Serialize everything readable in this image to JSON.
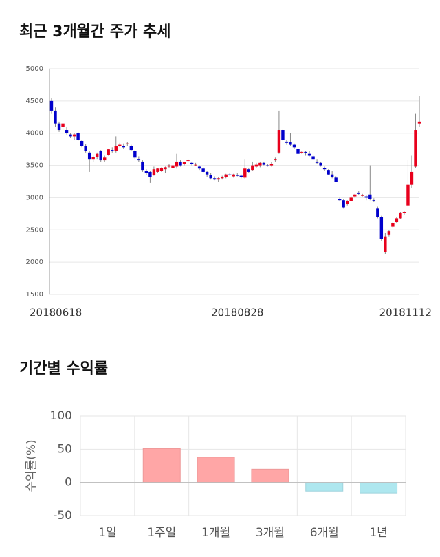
{
  "chart_data": [
    {
      "type": "candlestick",
      "title": "최근 3개월간 주가 추세",
      "categories": [
        "20180618",
        null,
        null,
        null,
        null,
        null,
        null,
        null,
        null,
        null,
        null,
        null,
        null,
        null,
        null,
        null,
        null,
        null,
        null,
        null,
        null,
        null,
        null,
        null,
        null,
        null,
        null,
        null,
        null,
        null,
        null,
        null,
        null,
        null,
        null,
        null,
        null,
        null,
        null,
        null,
        null,
        null,
        null,
        null,
        null,
        null,
        null,
        null,
        null,
        "20180828",
        null,
        null,
        null,
        null,
        null,
        null,
        null,
        null,
        null,
        null,
        null,
        null,
        null,
        null,
        null,
        null,
        null,
        null,
        null,
        null,
        null,
        null,
        null,
        null,
        null,
        null,
        null,
        null,
        null,
        null,
        null,
        null,
        null,
        null,
        null,
        null,
        null,
        null,
        null,
        null,
        null,
        null,
        null,
        null,
        null,
        null,
        null,
        "20181112"
      ],
      "open": [
        4500,
        4350,
        4150,
        4100,
        4050,
        3980,
        3950,
        4000,
        3880,
        3800,
        3700,
        3600,
        3630,
        3720,
        3580,
        3660,
        3740,
        3720,
        3800,
        3800,
        3830,
        3800,
        3720,
        3600,
        3560,
        3420,
        3400,
        3350,
        3400,
        3420,
        3440,
        3480,
        3460,
        3480,
        3560,
        3520,
        3570,
        3540,
        3500,
        3480,
        3450,
        3400,
        3350,
        3300,
        3280,
        3300,
        3320,
        3360,
        3330,
        3350,
        3340,
        3310,
        3440,
        3430,
        3480,
        3500,
        3540,
        3500,
        3500,
        3580,
        3700,
        4050,
        3870,
        3860,
        3820,
        3760,
        3700,
        3710,
        3680,
        3640,
        3560,
        3540,
        3460,
        3430,
        3360,
        3310,
        2980,
        2960,
        2900,
        2950,
        3020,
        3080,
        3040,
        3020,
        3050,
        2960,
        2830,
        2700,
        2160,
        2420,
        2550,
        2620,
        2680,
        2760,
        2880,
        3200,
        3480,
        4150
      ],
      "high": [
        4550,
        4400,
        4180,
        4150,
        4100,
        4000,
        4000,
        4020,
        3900,
        3830,
        3720,
        3650,
        3700,
        3740,
        3650,
        3760,
        3780,
        3950,
        3850,
        3840,
        3860,
        3820,
        3740,
        3640,
        3580,
        3440,
        3420,
        3480,
        3460,
        3470,
        3480,
        3520,
        3520,
        3680,
        3580,
        3560,
        3600,
        3560,
        3540,
        3500,
        3470,
        3420,
        3380,
        3330,
        3320,
        3340,
        3370,
        3380,
        3370,
        3380,
        3360,
        3600,
        3460,
        3560,
        3540,
        3560,
        3560,
        3520,
        3550,
        3620,
        4350,
        4060,
        3900,
        4000,
        3840,
        3780,
        3720,
        3730,
        3720,
        3660,
        3600,
        3560,
        3480,
        3440,
        3420,
        3330,
        3000,
        2980,
        2960,
        3020,
        3060,
        3100,
        3060,
        3040,
        3500,
        2990,
        2860,
        2720,
        2450,
        2500,
        2620,
        2700,
        2780,
        2790,
        3580,
        3650,
        4300,
        4580
      ],
      "low": [
        4300,
        4100,
        4020,
        4050,
        3980,
        3930,
        3900,
        3880,
        3780,
        3700,
        3400,
        3550,
        3600,
        3550,
        3560,
        3650,
        3700,
        3700,
        3780,
        3760,
        3800,
        3720,
        3600,
        3550,
        3400,
        3350,
        3230,
        3340,
        3380,
        3400,
        3380,
        3460,
        3420,
        3450,
        3480,
        3500,
        3540,
        3500,
        3490,
        3430,
        3380,
        3320,
        3280,
        3270,
        3250,
        3280,
        3300,
        3340,
        3310,
        3330,
        3300,
        3290,
        3380,
        3420,
        3460,
        3470,
        3500,
        3480,
        3480,
        3560,
        3680,
        3880,
        3820,
        3800,
        3760,
        3630,
        3680,
        3650,
        3640,
        3580,
        3520,
        3480,
        3420,
        3350,
        3300,
        3240,
        2940,
        2830,
        2880,
        2940,
        3000,
        3040,
        3020,
        2960,
        2960,
        2930,
        2680,
        2330,
        2120,
        2400,
        2530,
        2600,
        2670,
        2740,
        2860,
        3150,
        3460,
        4100
      ],
      "close": [
        4350,
        4150,
        4050,
        4150,
        4000,
        3950,
        3980,
        3900,
        3800,
        3720,
        3600,
        3630,
        3680,
        3580,
        3620,
        3750,
        3720,
        3800,
        3820,
        3780,
        3840,
        3740,
        3620,
        3580,
        3430,
        3380,
        3320,
        3440,
        3450,
        3460,
        3470,
        3500,
        3500,
        3560,
        3500,
        3550,
        3580,
        3520,
        3510,
        3450,
        3400,
        3360,
        3300,
        3280,
        3300,
        3320,
        3360,
        3350,
        3360,
        3340,
        3320,
        3450,
        3400,
        3500,
        3510,
        3540,
        3510,
        3490,
        3520,
        3600,
        4050,
        3900,
        3850,
        3820,
        3780,
        3680,
        3710,
        3690,
        3650,
        3600,
        3540,
        3500,
        3440,
        3360,
        3320,
        3250,
        2960,
        2850,
        2950,
        3000,
        3050,
        3060,
        3040,
        3000,
        2980,
        2950,
        2700,
        2360,
        2400,
        2480,
        2600,
        2680,
        2760,
        2770,
        3200,
        3400,
        4050,
        4180
      ],
      "up_color": "#e8001c",
      "down_color": "#0000cc",
      "ylim": [
        1500,
        5000
      ],
      "yticks": [
        1500,
        2000,
        2500,
        3000,
        3500,
        4000,
        4500,
        5000
      ],
      "grid": true
    },
    {
      "type": "bar",
      "title": "기간별 수익률",
      "y_label": "수익률(%)",
      "categories": [
        "1일",
        "1주일",
        "1개월",
        "3개월",
        "6개월",
        "1년"
      ],
      "values": [
        0,
        51,
        38,
        20,
        -13,
        -16
      ],
      "color": "#ffa6a6",
      "negative_color": "#aee7ef",
      "ylim": [
        -50,
        100
      ],
      "yticks": [
        -50,
        0,
        50,
        100
      ],
      "grid": true
    }
  ]
}
